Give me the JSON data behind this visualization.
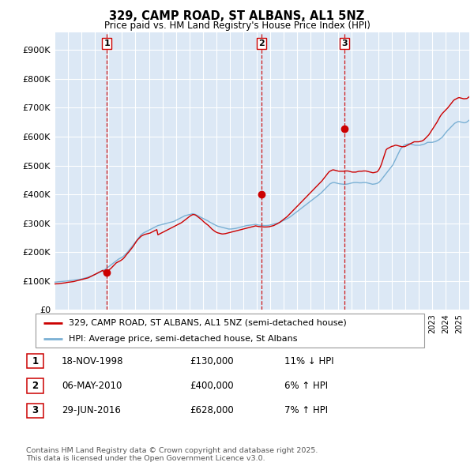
{
  "title": "329, CAMP ROAD, ST ALBANS, AL1 5NZ",
  "subtitle": "Price paid vs. HM Land Registry's House Price Index (HPI)",
  "yticks": [
    0,
    100000,
    200000,
    300000,
    400000,
    500000,
    600000,
    700000,
    800000,
    900000
  ],
  "ytick_labels": [
    "£0",
    "£100K",
    "£200K",
    "£300K",
    "£400K",
    "£500K",
    "£600K",
    "£700K",
    "£800K",
    "£900K"
  ],
  "ylim": [
    0,
    960000
  ],
  "xlim_start": 1995.25,
  "xlim_end": 2025.75,
  "transactions": [
    {
      "num": 1,
      "date_label": "18-NOV-1998",
      "date_x": 1998.88,
      "price": 130000,
      "hpi_pct": "11% ↓ HPI"
    },
    {
      "num": 2,
      "date_label": "06-MAY-2010",
      "date_x": 2010.35,
      "price": 400000,
      "hpi_pct": "6% ↑ HPI"
    },
    {
      "num": 3,
      "date_label": "29-JUN-2016",
      "date_x": 2016.49,
      "price": 628000,
      "hpi_pct": "7% ↑ HPI"
    }
  ],
  "red_line_color": "#cc0000",
  "blue_line_color": "#7ab0d4",
  "grid_color": "#ffffff",
  "chart_bg_color": "#dce8f5",
  "transaction_line_color": "#cc0000",
  "background_color": "#ffffff",
  "legend_label_red": "329, CAMP ROAD, ST ALBANS, AL1 5NZ (semi-detached house)",
  "legend_label_blue": "HPI: Average price, semi-detached house, St Albans",
  "footer": "Contains HM Land Registry data © Crown copyright and database right 2025.\nThis data is licensed under the Open Government Licence v3.0.",
  "hpi_data_monthly": {
    "start_year": 1995,
    "start_month": 1,
    "values": [
      96000,
      96500,
      97000,
      97200,
      97500,
      97800,
      98200,
      98500,
      98800,
      99000,
      99500,
      100000,
      100500,
      101000,
      101500,
      102000,
      102500,
      103000,
      103500,
      104000,
      104500,
      105000,
      105500,
      106000,
      107000,
      108000,
      109000,
      110000,
      111000,
      112000,
      113500,
      115000,
      116000,
      117500,
      119000,
      120500,
      122000,
      124000,
      126000,
      128000,
      130000,
      132000,
      134000,
      136000,
      138000,
      140000,
      143000,
      146000,
      149000,
      152000,
      155000,
      158000,
      161000,
      164000,
      167000,
      170000,
      173000,
      176000,
      178000,
      180000,
      182000,
      185000,
      188000,
      192000,
      196000,
      200000,
      205000,
      210000,
      215000,
      220000,
      225000,
      230000,
      235000,
      240000,
      245000,
      250000,
      255000,
      260000,
      263000,
      266000,
      268000,
      270000,
      272000,
      274000,
      276000,
      278000,
      280000,
      282000,
      284000,
      286000,
      288000,
      290000,
      292000,
      293000,
      294000,
      295000,
      296000,
      297000,
      298000,
      299000,
      300000,
      301000,
      302000,
      303000,
      304000,
      305000,
      306000,
      308000,
      310000,
      312000,
      314000,
      316000,
      318000,
      320000,
      322000,
      324000,
      326000,
      327000,
      328000,
      329000,
      330000,
      331000,
      332000,
      333000,
      332000,
      331000,
      329000,
      327000,
      325000,
      323000,
      321000,
      319000,
      317000,
      315000,
      313000,
      311000,
      309000,
      307000,
      304000,
      302000,
      300000,
      298000,
      296000,
      294000,
      292000,
      290000,
      289000,
      288000,
      287000,
      286000,
      285000,
      284000,
      283000,
      282000,
      281000,
      280000,
      280000,
      280000,
      280500,
      281000,
      281500,
      282000,
      283000,
      284000,
      285000,
      286000,
      287000,
      288000,
      289000,
      290000,
      291000,
      292000,
      292500,
      293000,
      293500,
      294000,
      294500,
      295000,
      295500,
      296000,
      295000,
      294000,
      293500,
      293000,
      292800,
      292500,
      292300,
      292000,
      292000,
      292200,
      292500,
      293000,
      294000,
      295000,
      296000,
      297000,
      298000,
      299000,
      300000,
      301000,
      302500,
      304000,
      306000,
      308000,
      310000,
      312000,
      314000,
      316000,
      318000,
      320000,
      323000,
      326000,
      329000,
      332000,
      335000,
      338000,
      341000,
      344000,
      347000,
      350000,
      353000,
      356000,
      359000,
      362000,
      365000,
      368000,
      371000,
      374000,
      377000,
      380000,
      383000,
      386000,
      389000,
      392000,
      395000,
      398000,
      401000,
      404000,
      408000,
      412000,
      416000,
      420000,
      424000,
      428000,
      432000,
      436000,
      438000,
      440000,
      441000,
      441000,
      440000,
      439000,
      438000,
      437000,
      436500,
      436000,
      435500,
      435000,
      435000,
      435000,
      435500,
      436000,
      437000,
      438000,
      439000,
      440000,
      440500,
      441000,
      441000,
      441000,
      440500,
      440000,
      440000,
      440000,
      440500,
      441000,
      441000,
      441000,
      440000,
      439000,
      438000,
      437000,
      436000,
      435000,
      435500,
      436000,
      437000,
      438000,
      440000,
      443000,
      447000,
      452000,
      457000,
      462000,
      467000,
      472000,
      477000,
      482000,
      487000,
      492000,
      497000,
      502000,
      510000,
      518000,
      526000,
      534000,
      542000,
      550000,
      558000,
      562000,
      566000,
      570000,
      572000,
      573000,
      574000,
      575000,
      575000,
      574000,
      573000,
      572000,
      571000,
      570000,
      570000,
      570000,
      570000,
      570000,
      571000,
      572000,
      573000,
      574000,
      576000,
      578000,
      580000,
      580000,
      580000,
      580000,
      580000,
      581000,
      582000,
      583000,
      585000,
      587000,
      589000,
      592000,
      595000,
      598000,
      603000,
      608000,
      613000,
      618000,
      622000,
      626000,
      630000,
      634000,
      638000,
      642000,
      646000,
      648000,
      650000,
      652000,
      652000,
      651000,
      650000,
      649000,
      648000,
      648000,
      649000,
      651000,
      654000,
      657000,
      660000,
      663000,
      666000,
      668000,
      670000,
      671000,
      672000
    ]
  },
  "property_data_monthly": {
    "start_year": 1995,
    "start_month": 1,
    "values": [
      90000,
      90000,
      90500,
      90500,
      91000,
      91500,
      92000,
      92500,
      93000,
      93500,
      94000,
      95000,
      95500,
      96000,
      96500,
      97000,
      97500,
      98000,
      99000,
      100000,
      101000,
      102000,
      103000,
      104000,
      105000,
      106000,
      107000,
      108000,
      109000,
      110000,
      111000,
      113000,
      115000,
      117000,
      119000,
      121000,
      123000,
      125000,
      127000,
      129000,
      131000,
      133000,
      135000,
      137000,
      130000,
      131000,
      133000,
      135000,
      137000,
      140000,
      143000,
      147000,
      151000,
      155000,
      159000,
      163000,
      165000,
      167000,
      169000,
      171000,
      174000,
      177000,
      181000,
      186000,
      191000,
      196000,
      200000,
      205000,
      210000,
      215000,
      220000,
      226000,
      232000,
      238000,
      243000,
      247000,
      251000,
      255000,
      257000,
      259000,
      261000,
      262000,
      263000,
      264000,
      265000,
      266000,
      268000,
      270000,
      272000,
      274000,
      276000,
      278000,
      260000,
      262000,
      264000,
      266000,
      268000,
      270000,
      272000,
      274000,
      276000,
      278000,
      280000,
      282000,
      284000,
      286000,
      288000,
      290000,
      292000,
      294000,
      296000,
      298000,
      300000,
      302000,
      305000,
      308000,
      311000,
      314000,
      317000,
      320000,
      323000,
      326000,
      328000,
      330000,
      330000,
      329000,
      327000,
      324000,
      321000,
      318000,
      315000,
      312000,
      308000,
      304000,
      301000,
      298000,
      295000,
      292000,
      288000,
      284000,
      280000,
      277000,
      274000,
      271000,
      269000,
      267000,
      266000,
      265000,
      264000,
      263000,
      263000,
      263500,
      264000,
      265000,
      266000,
      267000,
      268000,
      269000,
      270000,
      271000,
      272000,
      273000,
      274000,
      275000,
      276000,
      277000,
      278000,
      279000,
      280000,
      281000,
      282000,
      283000,
      284000,
      285000,
      286000,
      287000,
      288000,
      289000,
      290000,
      291000,
      290000,
      289000,
      288500,
      288000,
      287800,
      287500,
      287300,
      287000,
      287000,
      287200,
      287500,
      288000,
      289000,
      290000,
      291000,
      292000,
      294000,
      296000,
      298000,
      300000,
      302000,
      305000,
      308000,
      311000,
      314000,
      317000,
      320000,
      323000,
      327000,
      331000,
      335000,
      339000,
      343000,
      347000,
      351000,
      355000,
      359000,
      363000,
      367000,
      371000,
      375000,
      379000,
      383000,
      387000,
      391000,
      395000,
      399000,
      403000,
      407000,
      411000,
      415000,
      419000,
      423000,
      427000,
      431000,
      435000,
      439000,
      443000,
      447000,
      452000,
      457000,
      462000,
      467000,
      472000,
      477000,
      480000,
      482000,
      484000,
      485000,
      484000,
      483000,
      482000,
      481000,
      480000,
      480000,
      480000,
      480000,
      480000,
      480500,
      481000,
      481000,
      481000,
      480000,
      479000,
      478000,
      477000,
      477000,
      477000,
      477000,
      478000,
      479000,
      480000,
      480000,
      480000,
      480500,
      481000,
      481000,
      481000,
      480000,
      479000,
      478000,
      477000,
      476000,
      475000,
      475000,
      476000,
      477000,
      478000,
      482000,
      488000,
      496000,
      506000,
      518000,
      530000,
      542000,
      554000,
      558000,
      560000,
      562000,
      564000,
      566000,
      567000,
      568000,
      570000,
      570000,
      569000,
      568000,
      567000,
      566000,
      565000,
      565000,
      565000,
      566000,
      568000,
      570000,
      572000,
      574000,
      576000,
      578000,
      580000,
      582000,
      582000,
      582000,
      582000,
      582000,
      583000,
      584000,
      585000,
      587000,
      590000,
      594000,
      598000,
      602000,
      606000,
      612000,
      618000,
      624000,
      630000,
      636000,
      642000,
      648000,
      655000,
      662000,
      669000,
      675000,
      680000,
      684000,
      688000,
      692000,
      696000,
      700000,
      705000,
      710000,
      715000,
      720000,
      725000,
      728000,
      730000,
      732000,
      734000,
      735000,
      734000,
      733000,
      732000,
      731000,
      731000,
      731500,
      732000,
      735000,
      738000,
      742000,
      746000,
      750000,
      754000,
      757000,
      759000,
      760000
    ]
  }
}
